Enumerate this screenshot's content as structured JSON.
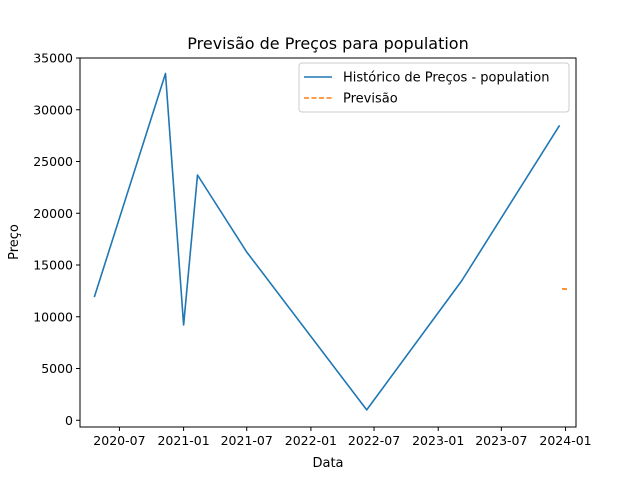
{
  "chart_data": {
    "type": "line",
    "title": "Previsão de Preços para population",
    "xlabel": "Data",
    "ylabel": "Preço",
    "xlim": [
      "2020-03-10",
      "2024-01-31"
    ],
    "ylim": [
      -650,
      35000
    ],
    "x_ticks": [
      "2020-07-01",
      "2021-01-01",
      "2021-07-01",
      "2022-01-01",
      "2022-07-01",
      "2023-01-01",
      "2023-07-01",
      "2024-01-01"
    ],
    "x_tick_labels": [
      "2020-07",
      "2021-01",
      "2021-07",
      "2022-01",
      "2022-07",
      "2023-01",
      "2023-07",
      "2024-01"
    ],
    "y_ticks": [
      0,
      5000,
      10000,
      15000,
      20000,
      25000,
      30000,
      35000
    ],
    "y_tick_labels": [
      "0",
      "5000",
      "10000",
      "15000",
      "20000",
      "25000",
      "30000",
      "35000"
    ],
    "grid": false,
    "legend_position": "top-right",
    "series": [
      {
        "name": "Histórico de Preços - population",
        "color": "#1f77b4",
        "style": "solid",
        "points": [
          {
            "x": "2020-04-20",
            "y": 11900
          },
          {
            "x": "2020-11-10",
            "y": 33500
          },
          {
            "x": "2021-01-01",
            "y": 9200
          },
          {
            "x": "2021-02-10",
            "y": 23700
          },
          {
            "x": "2021-06-30",
            "y": 16300
          },
          {
            "x": "2022-06-10",
            "y": 1000
          },
          {
            "x": "2023-03-10",
            "y": 13500
          },
          {
            "x": "2023-12-15",
            "y": 28500
          }
        ]
      },
      {
        "name": "Previsão",
        "color": "#ff7f0e",
        "style": "dashed",
        "points": [
          {
            "x": "2023-12-22",
            "y": 12700
          },
          {
            "x": "2024-01-10",
            "y": 12650
          }
        ]
      }
    ]
  }
}
